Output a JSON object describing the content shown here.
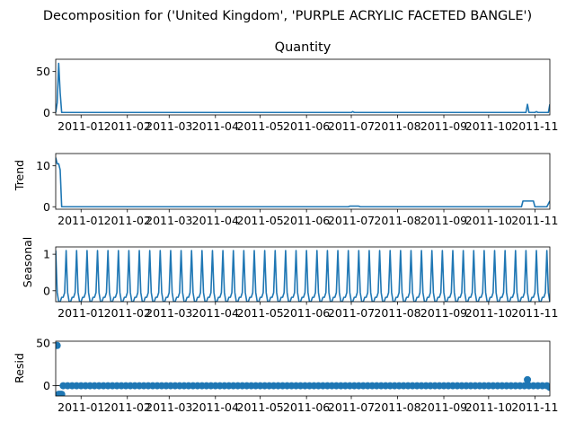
{
  "chart_data": {
    "type": "line",
    "suptitle": "Decomposition for ('United Kingdom', 'PURPLE ACRYLIC FACETED BANGLE')",
    "x_range": [
      "2010-12-15",
      "2011-11-11"
    ],
    "x_ticks": [
      "2011-01",
      "2011-02",
      "2011-03",
      "2011-04",
      "2011-05",
      "2011-06",
      "2011-07",
      "2011-08",
      "2011-09",
      "2011-10",
      "2011-11"
    ],
    "color": "#1f77b4",
    "panels": [
      {
        "key": "observed",
        "title": "Quantity",
        "ylabel": "",
        "style": "line",
        "ylim": [
          -3,
          65
        ],
        "yticks": [
          0,
          50
        ],
        "points": [
          [
            "2010-12-15",
            0
          ],
          [
            "2010-12-16",
            12
          ],
          [
            "2010-12-17",
            60
          ],
          [
            "2010-12-18",
            24
          ],
          [
            "2010-12-19",
            0
          ],
          [
            "2011-07-01",
            0
          ],
          [
            "2011-07-02",
            1
          ],
          [
            "2011-07-03",
            0
          ],
          [
            "2011-10-26",
            0
          ],
          [
            "2011-10-27",
            10
          ],
          [
            "2011-10-28",
            0
          ],
          [
            "2011-11-01",
            0
          ],
          [
            "2011-11-02",
            1
          ],
          [
            "2011-11-03",
            0
          ],
          [
            "2011-11-10",
            0
          ],
          [
            "2011-11-11",
            10
          ]
        ]
      },
      {
        "key": "trend",
        "title": "",
        "ylabel": "Trend",
        "style": "line",
        "ylim": [
          -0.6,
          13
        ],
        "yticks": [
          0,
          10
        ],
        "points": [
          [
            "2010-12-15",
            12
          ],
          [
            "2010-12-16",
            10.5
          ],
          [
            "2010-12-17",
            10.5
          ],
          [
            "2010-12-18",
            9
          ],
          [
            "2010-12-19",
            0
          ],
          [
            "2011-06-29",
            0
          ],
          [
            "2011-06-30",
            0.15
          ],
          [
            "2011-07-06",
            0.15
          ],
          [
            "2011-07-07",
            0
          ],
          [
            "2011-10-23",
            0
          ],
          [
            "2011-10-24",
            1.4
          ],
          [
            "2011-10-31",
            1.4
          ],
          [
            "2011-11-01",
            0
          ],
          [
            "2011-11-09",
            0
          ],
          [
            "2011-11-11",
            1.4
          ]
        ]
      },
      {
        "key": "seasonal",
        "title": "",
        "ylabel": "Seasonal",
        "style": "seasonal",
        "ylim": [
          -0.3,
          1.2
        ],
        "yticks": [
          0,
          1
        ],
        "period_days": 7,
        "cycle": [
          1.1,
          -0.05,
          -0.3,
          -0.3,
          -0.18,
          -0.18,
          -0.05
        ],
        "start": "2010-12-15",
        "end": "2011-11-11"
      },
      {
        "key": "resid",
        "title": "",
        "ylabel": "Resid",
        "style": "scatter",
        "ylim": [
          -12,
          52
        ],
        "yticks": [
          0,
          50
        ],
        "outliers": [
          [
            "2010-12-16",
            47
          ],
          [
            "2010-12-17",
            -10
          ],
          [
            "2010-12-18",
            -10
          ],
          [
            "2010-12-19",
            -10
          ],
          [
            "2011-10-27",
            7
          ],
          [
            "2011-11-11",
            -2
          ]
        ],
        "baseline_start": "2010-12-20",
        "baseline_end": "2011-11-10",
        "baseline_step_days": 3
      }
    ]
  }
}
